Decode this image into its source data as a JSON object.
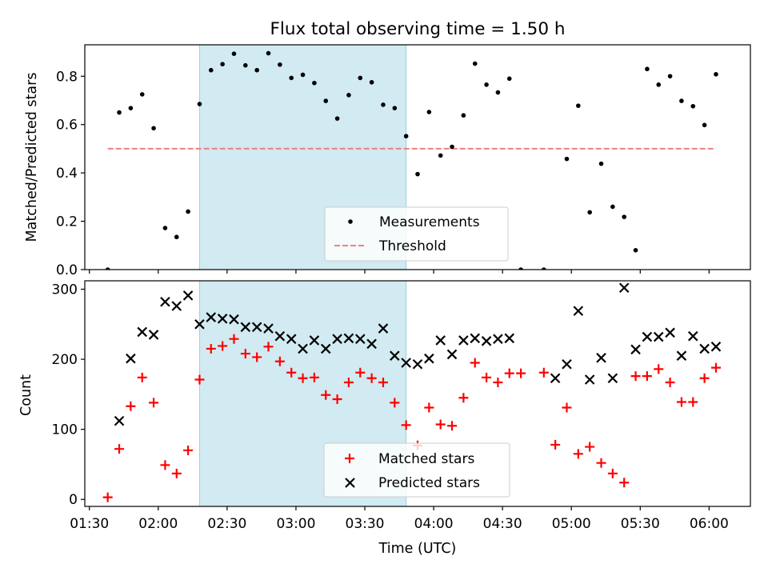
{
  "chart_data": [
    {
      "type": "scatter",
      "title": "Flux total observing time = 1.50 h",
      "ylabel": "Matched/Predicted stars",
      "xlabel": "",
      "ylim": [
        0,
        0.93
      ],
      "yticks": [
        0.0,
        0.2,
        0.4,
        0.6,
        0.8
      ],
      "ytick_labels": [
        "0.0",
        "0.2",
        "0.4",
        "0.6",
        "0.8"
      ],
      "shaded_interval_min": [
        48,
        138
      ],
      "legend_position": "lower-center",
      "series": [
        {
          "name": "Measurements",
          "marker": "dot",
          "color": "#000000",
          "x_min": [
            8,
            13,
            18,
            23,
            28,
            33,
            38,
            43,
            48,
            53,
            58,
            63,
            68,
            73,
            78,
            83,
            88,
            93,
            98,
            103,
            108,
            113,
            118,
            123,
            128,
            133,
            138,
            143,
            148,
            153,
            158,
            163,
            168,
            173,
            178,
            183,
            188,
            198,
            208,
            213,
            218,
            223,
            228,
            233,
            238,
            243,
            248,
            253,
            258,
            263,
            268,
            273
          ],
          "y": [
            0.0,
            0.65,
            0.668,
            0.725,
            0.585,
            0.172,
            0.135,
            0.24,
            0.685,
            0.825,
            0.85,
            0.893,
            0.845,
            0.825,
            0.895,
            0.848,
            0.793,
            0.806,
            0.772,
            0.698,
            0.625,
            0.722,
            0.793,
            0.775,
            0.682,
            0.668,
            0.552,
            0.395,
            0.652,
            0.472,
            0.508,
            0.638,
            0.852,
            0.765,
            0.733,
            0.79,
            0.0,
            0.0,
            0.458,
            0.678,
            0.237,
            0.438,
            0.26,
            0.218,
            0.08,
            0.83,
            0.765,
            0.8,
            0.698,
            0.676,
            0.598,
            0.808
          ]
        },
        {
          "name": "Threshold",
          "marker": "dashed-line",
          "color": "#f08080",
          "x_min": [
            8,
            273
          ],
          "y": [
            0.5,
            0.5
          ]
        }
      ]
    },
    {
      "type": "scatter",
      "title": "",
      "xlabel": "Time (UTC)",
      "ylabel": "Count",
      "ylim": [
        -10,
        312
      ],
      "yticks": [
        0,
        100,
        200,
        300
      ],
      "ytick_labels": [
        "0",
        "100",
        "200",
        "300"
      ],
      "xlim_min": [
        -2,
        288
      ],
      "xticks_min": [
        0,
        30,
        60,
        90,
        120,
        150,
        180,
        210,
        240,
        270
      ],
      "xtick_labels": [
        "01:30",
        "02:00",
        "02:30",
        "03:00",
        "03:30",
        "04:00",
        "04:30",
        "05:00",
        "05:30",
        "06:00"
      ],
      "shaded_interval_min": [
        48,
        138
      ],
      "legend_position": "lower-center",
      "series": [
        {
          "name": "Matched stars",
          "marker": "plus",
          "color": "#ff0000",
          "x_min": [
            8,
            13,
            18,
            23,
            28,
            33,
            38,
            43,
            48,
            53,
            58,
            63,
            68,
            73,
            78,
            83,
            88,
            93,
            98,
            103,
            108,
            113,
            118,
            123,
            128,
            133,
            138,
            143,
            148,
            153,
            158,
            163,
            168,
            173,
            178,
            183,
            188,
            198,
            203,
            208,
            213,
            218,
            223,
            228,
            233,
            238,
            243,
            248,
            253,
            258,
            263,
            268,
            273
          ],
          "y": [
            3,
            72,
            133,
            174,
            138,
            49,
            37,
            70,
            171,
            215,
            219,
            229,
            208,
            203,
            218,
            197,
            181,
            173,
            174,
            149,
            143,
            167,
            181,
            173,
            167,
            138,
            106,
            77,
            131,
            107,
            105,
            145,
            195,
            174,
            167,
            180,
            180,
            181,
            78,
            131,
            65,
            75,
            52,
            37,
            24,
            176,
            176,
            186,
            167,
            139,
            139,
            173,
            188
          ]
        },
        {
          "name": "Predicted stars",
          "marker": "x",
          "color": "#000000",
          "x_min": [
            13,
            18,
            23,
            28,
            33,
            38,
            43,
            48,
            53,
            58,
            63,
            68,
            73,
            78,
            83,
            88,
            93,
            98,
            103,
            108,
            113,
            118,
            123,
            128,
            133,
            138,
            143,
            148,
            153,
            158,
            163,
            168,
            173,
            178,
            183,
            203,
            208,
            213,
            218,
            223,
            228,
            233,
            238,
            243,
            248,
            253,
            258,
            263,
            268,
            273
          ],
          "y": [
            112,
            201,
            239,
            235,
            282,
            276,
            291,
            250,
            260,
            258,
            257,
            246,
            246,
            244,
            233,
            229,
            215,
            227,
            215,
            229,
            230,
            229,
            222,
            244,
            205,
            195,
            193,
            201,
            227,
            207,
            227,
            230,
            226,
            229,
            230,
            173,
            193,
            269,
            171,
            202,
            173,
            302,
            214,
            232,
            232,
            238,
            205,
            233,
            215,
            218
          ]
        }
      ]
    }
  ]
}
